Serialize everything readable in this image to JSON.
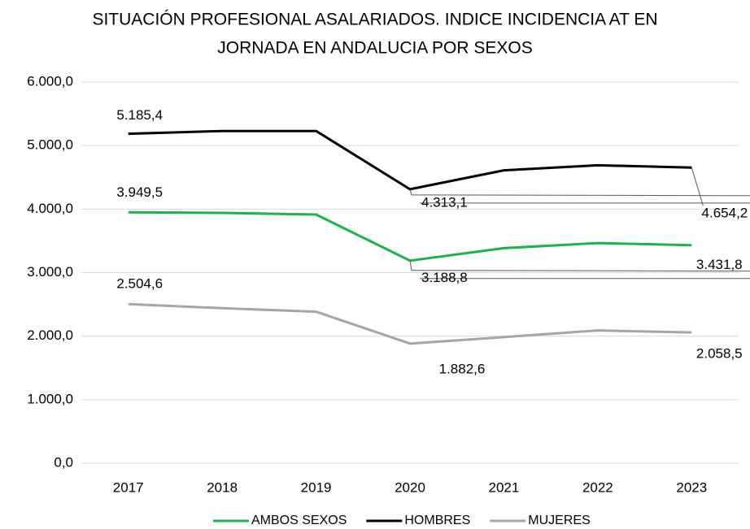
{
  "chart_data": {
    "type": "line",
    "title": [
      "SITUACIÓN PROFESIONAL ASALARIADOS. INDICE INCIDENCIA AT EN",
      "JORNADA EN ANDALUCIA POR SEXOS"
    ],
    "categories": [
      "2017",
      "2018",
      "2019",
      "2020",
      "2021",
      "2022",
      "2023"
    ],
    "series": [
      {
        "name": "AMBOS SEXOS",
        "color": "#1fb050",
        "values": [
          3949.5,
          3940,
          3915,
          3188.8,
          3385,
          3465,
          3431.8
        ],
        "value_labels": [
          "3.949,5",
          null,
          null,
          "3.188,8",
          null,
          null,
          "3.431,8"
        ]
      },
      {
        "name": "HOMBRES",
        "color": "#000000",
        "values": [
          5185.4,
          5230,
          5230,
          4313.1,
          4610,
          4690,
          4654.2
        ],
        "value_labels": [
          "5.185,4",
          null,
          null,
          "4.313,1",
          null,
          null,
          "4.654,2"
        ]
      },
      {
        "name": "MUJERES",
        "color": "#a6a6a6",
        "values": [
          2504.6,
          2440,
          2385,
          1882.6,
          1985,
          2090,
          2058.5
        ],
        "value_labels": [
          "2.504,6",
          null,
          null,
          "1.882,6",
          null,
          null,
          "2.058,5"
        ]
      }
    ],
    "ylim": [
      0,
      6000
    ],
    "yticks": [
      {
        "value": 0,
        "label": "0,0"
      },
      {
        "value": 1000,
        "label": "1.000,0"
      },
      {
        "value": 2000,
        "label": "2.000,0"
      },
      {
        "value": 3000,
        "label": "3.000,0"
      },
      {
        "value": 4000,
        "label": "4.000,0"
      },
      {
        "value": 5000,
        "label": "5.000,0"
      },
      {
        "value": 6000,
        "label": "6.000,0"
      }
    ],
    "grid": true,
    "legend": "bottom"
  }
}
